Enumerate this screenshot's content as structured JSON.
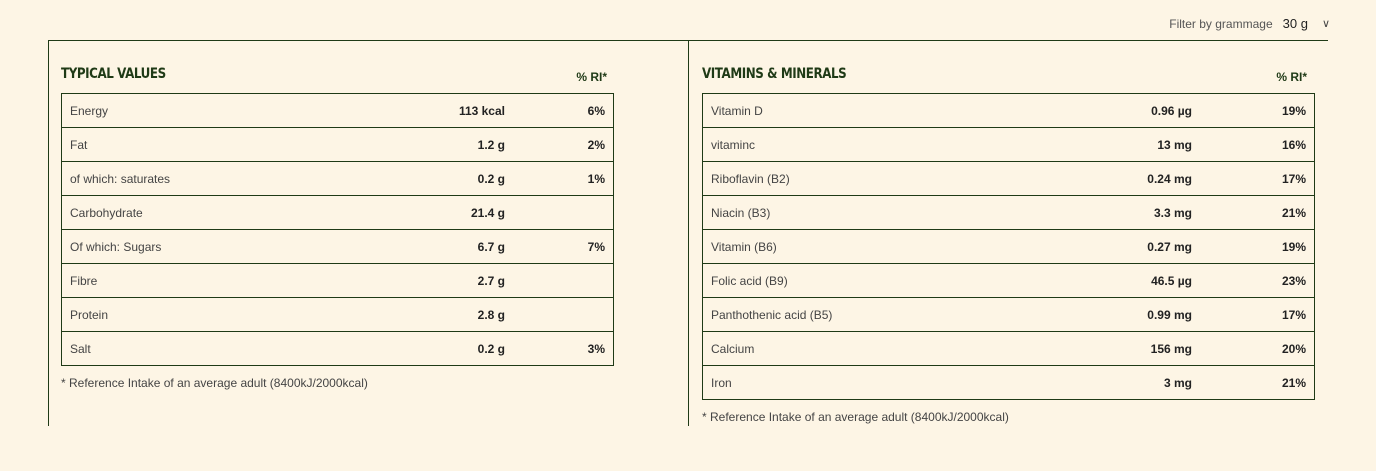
{
  "filter": {
    "label": "Filter by grammage",
    "value": "30 g"
  },
  "typical": {
    "title": "TYPICAL VALUES",
    "ri_header": "% RI*",
    "rows": [
      {
        "name": "Energy",
        "value": "113 kcal",
        "ri": "6%"
      },
      {
        "name": "Fat",
        "value": "1.2 g",
        "ri": "2%"
      },
      {
        "name": "of which: saturates",
        "value": "0.2 g",
        "ri": "1%"
      },
      {
        "name": "Carbohydrate",
        "value": "21.4 g",
        "ri": ""
      },
      {
        "name": "Of which: Sugars",
        "value": "6.7 g",
        "ri": "7%"
      },
      {
        "name": "Fibre",
        "value": "2.7 g",
        "ri": ""
      },
      {
        "name": "Protein",
        "value": "2.8 g",
        "ri": ""
      },
      {
        "name": "Salt",
        "value": "0.2 g",
        "ri": "3%"
      }
    ],
    "note": "* Reference Intake of an average adult (8400kJ/2000kcal)"
  },
  "vitamins": {
    "title": "VITAMINS & MINERALS",
    "ri_header": "% RI*",
    "rows": [
      {
        "name": "Vitamin D",
        "value": "0.96 µg",
        "ri": "19%"
      },
      {
        "name": "vitaminc",
        "value": "13 mg",
        "ri": "16%"
      },
      {
        "name": "Riboflavin (B2)",
        "value": "0.24 mg",
        "ri": "17%"
      },
      {
        "name": "Niacin (B3)",
        "value": "3.3 mg",
        "ri": "21%"
      },
      {
        "name": "Vitamin (B6)",
        "value": "0.27 mg",
        "ri": "19%"
      },
      {
        "name": "Folic acid (B9)",
        "value": "46.5 µg",
        "ri": "23%"
      },
      {
        "name": "Panthothenic acid (B5)",
        "value": "0.99 mg",
        "ri": "17%"
      },
      {
        "name": "Calcium",
        "value": "156 mg",
        "ri": "20%"
      },
      {
        "name": "Iron",
        "value": "3 mg",
        "ri": "21%"
      }
    ],
    "note": "* Reference Intake of an average adult (8400kJ/2000kcal)"
  }
}
